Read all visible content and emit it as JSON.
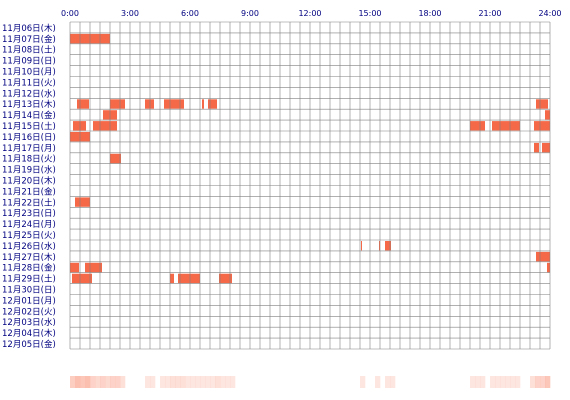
{
  "chart_data": {
    "type": "heatmap",
    "x_ticks": [
      "0:00",
      "3:00",
      "6:00",
      "9:00",
      "12:00",
      "15:00",
      "18:00",
      "21:00",
      "24:00"
    ],
    "xlim": [
      0,
      24
    ],
    "colors": {
      "active": "#f56848",
      "light": "#fbb5a3",
      "grid": "#808080",
      "label": "#000080"
    },
    "rows": [
      {
        "label": "11月06日(木)",
        "segments": []
      },
      {
        "label": "11月07日(金)",
        "segments": [
          [
            0.0,
            2.0
          ]
        ]
      },
      {
        "label": "11月08日(土)",
        "segments": []
      },
      {
        "label": "11月09日(日)",
        "segments": []
      },
      {
        "label": "11月10日(月)",
        "segments": []
      },
      {
        "label": "11月11日(火)",
        "segments": []
      },
      {
        "label": "11月12日(水)",
        "segments": []
      },
      {
        "label": "11月13日(木)",
        "segments": [
          [
            0.35,
            0.95
          ],
          [
            2.0,
            2.75
          ],
          [
            3.75,
            4.2
          ],
          [
            4.7,
            5.7
          ],
          [
            6.6,
            6.7
          ],
          [
            6.9,
            7.35
          ],
          [
            23.3,
            23.9
          ]
        ]
      },
      {
        "label": "11月14日(金)",
        "segments": [
          [
            1.65,
            2.35
          ],
          [
            23.75,
            24.0
          ]
        ]
      },
      {
        "label": "11月15日(土)",
        "segments": [
          [
            0.15,
            0.8
          ],
          [
            1.15,
            2.35
          ],
          [
            20.0,
            20.75
          ],
          [
            21.1,
            22.5
          ],
          [
            23.2,
            24.0
          ]
        ]
      },
      {
        "label": "11月16日(日)",
        "segments": [
          [
            0.0,
            1.0
          ]
        ]
      },
      {
        "label": "11月17日(月)",
        "segments": [
          [
            23.2,
            23.45
          ],
          [
            23.6,
            24.0
          ]
        ]
      },
      {
        "label": "11月18日(火)",
        "segments": [
          [
            2.0,
            2.55
          ]
        ]
      },
      {
        "label": "11月19日(水)",
        "segments": []
      },
      {
        "label": "11月20日(木)",
        "segments": []
      },
      {
        "label": "11月21日(金)",
        "segments": []
      },
      {
        "label": "11月22日(土)",
        "segments": [
          [
            0.25,
            1.0
          ]
        ]
      },
      {
        "label": "11月23日(日)",
        "segments": []
      },
      {
        "label": "11月24日(月)",
        "segments": []
      },
      {
        "label": "11月25日(火)",
        "segments": []
      },
      {
        "label": "11月26日(水)",
        "segments": [
          [
            14.55,
            14.6
          ],
          [
            15.45,
            15.5
          ],
          [
            15.75,
            16.05
          ]
        ]
      },
      {
        "label": "11月27日(木)",
        "segments": [
          [
            23.3,
            24.0
          ]
        ]
      },
      {
        "label": "11月28日(金)",
        "segments": [
          [
            0.0,
            0.45
          ],
          [
            0.75,
            1.6
          ],
          [
            23.85,
            24.0
          ]
        ]
      },
      {
        "label": "11月29日(土)",
        "segments": [
          [
            0.1,
            1.1
          ],
          [
            5.0,
            5.2
          ],
          [
            5.4,
            6.5
          ],
          [
            7.45,
            8.1
          ]
        ]
      },
      {
        "label": "11月30日(日)",
        "segments": []
      },
      {
        "label": "12月01日(月)",
        "segments": []
      },
      {
        "label": "12月02日(火)",
        "segments": []
      },
      {
        "label": "12月03日(水)",
        "segments": []
      },
      {
        "label": "12月04日(木)",
        "segments": []
      },
      {
        "label": "12月05日(金)",
        "segments": []
      }
    ]
  }
}
